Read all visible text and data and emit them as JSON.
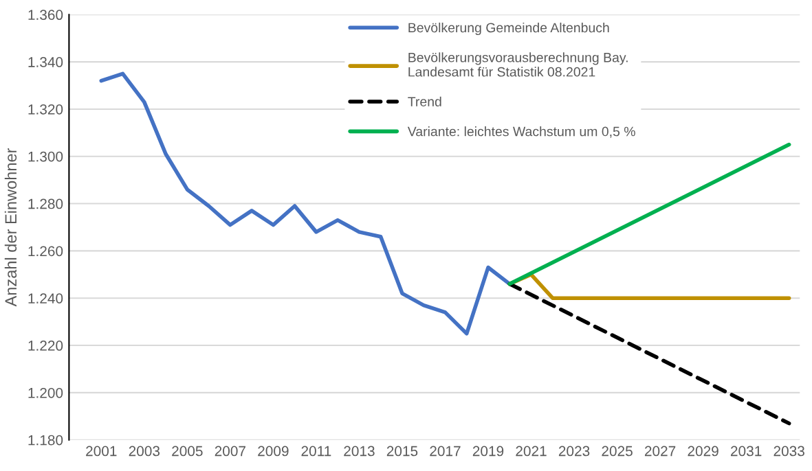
{
  "chart_data": {
    "type": "line",
    "ylabel": "Anzahl der Einwohner",
    "x": [
      2001,
      2002,
      2003,
      2004,
      2005,
      2006,
      2007,
      2008,
      2009,
      2010,
      2011,
      2012,
      2013,
      2014,
      2015,
      2016,
      2017,
      2018,
      2019,
      2020
    ],
    "series": [
      {
        "name": "Bevölkerung Gemeinde Altenbuch",
        "color": "#4472c4",
        "values": [
          1332,
          1335,
          1323,
          1301,
          1286,
          1279,
          1271,
          1277,
          1271,
          1279,
          1268,
          1273,
          1268,
          1266,
          1242,
          1237,
          1234,
          1225,
          1253,
          1246
        ]
      },
      {
        "name": "Bevölkerungsvorausberechnung Bay.\nLandesamt für Statistik 08.2021",
        "color": "#bf9000",
        "x": [
          2020,
          2021,
          2022,
          2033
        ],
        "values": [
          1246,
          1250,
          1240,
          1240
        ]
      },
      {
        "name": "Trend",
        "color": "#000000",
        "line_style": "dashed",
        "x": [
          2020,
          2033
        ],
        "values": [
          1246,
          1187
        ]
      },
      {
        "name": "Variante: leichtes Wachstum um 0,5 %",
        "color": "#00b050",
        "x": [
          2020,
          2033
        ],
        "values": [
          1246,
          1305
        ]
      }
    ],
    "xlim": [
      1999.5,
      2033.5
    ],
    "xticks": [
      2001,
      2003,
      2005,
      2007,
      2009,
      2011,
      2013,
      2015,
      2017,
      2019,
      2021,
      2023,
      2025,
      2027,
      2029,
      2031,
      2033
    ],
    "ylim": [
      1180,
      1360
    ],
    "yticks": [
      {
        "value": 1180,
        "label": "1.180"
      },
      {
        "value": 1200,
        "label": "1.200"
      },
      {
        "value": 1220,
        "label": "1.220"
      },
      {
        "value": 1240,
        "label": "1.240"
      },
      {
        "value": 1260,
        "label": "1.260"
      },
      {
        "value": 1280,
        "label": "1.280"
      },
      {
        "value": 1300,
        "label": "1.300"
      },
      {
        "value": 1320,
        "label": "1.320"
      },
      {
        "value": 1340,
        "label": "1.340"
      },
      {
        "value": 1360,
        "label": "1.360"
      }
    ],
    "grid": "y",
    "legend": "top",
    "marker": "none",
    "line_style": "solid"
  }
}
